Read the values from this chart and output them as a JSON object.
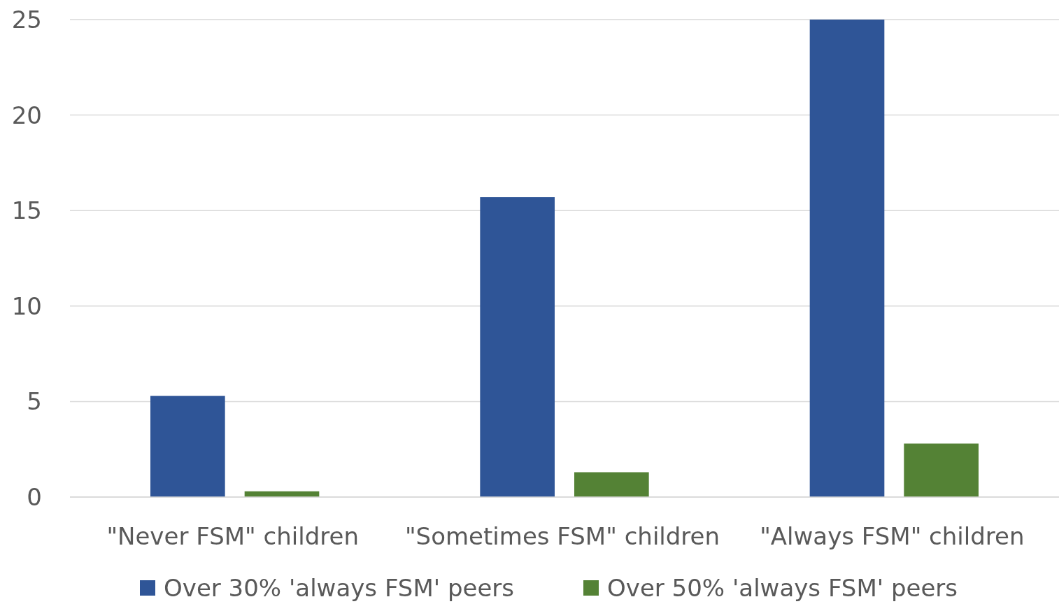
{
  "chart_data": {
    "type": "bar",
    "categories": [
      "\"Never FSM\" children",
      "\"Sometimes FSM\" children",
      "\"Always FSM\" children"
    ],
    "series": [
      {
        "name": "Over 30% 'always FSM' peers",
        "color": "#2f5597",
        "values": [
          5.3,
          15.7,
          25.0
        ]
      },
      {
        "name": "Over 50% 'always FSM' peers",
        "color": "#548235",
        "values": [
          0.3,
          1.3,
          2.8
        ]
      }
    ],
    "ylim": [
      0,
      25
    ],
    "yticks": [
      0,
      5,
      10,
      15,
      20,
      25
    ],
    "grid": "y",
    "legend": "bottom"
  }
}
